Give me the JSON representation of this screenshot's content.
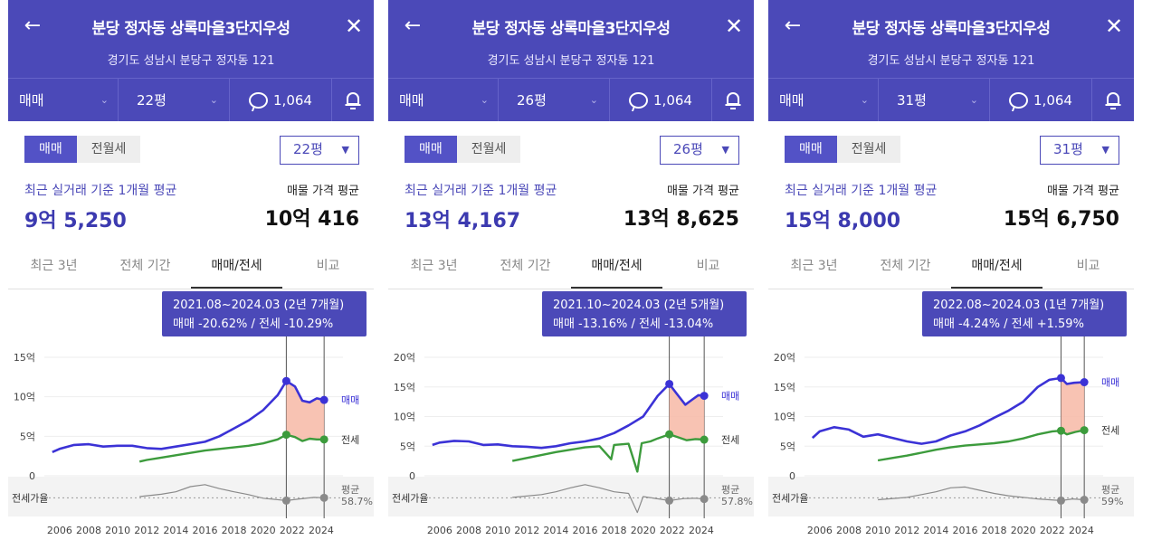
{
  "colors": {
    "header": "#4b49b8",
    "trade_line": "#3b32d6",
    "jeonse_line": "#3c9b3c",
    "range_fill": "#f7b8a6",
    "ratio_line": "#8a8a8a"
  },
  "panels": [
    {
      "header": {
        "title": "분당 정자동 상록마을3단지우성",
        "address": "경기도 성남시 분당구 정자동 121"
      },
      "toolbar": {
        "trade_type": "매매",
        "size": "22평",
        "comment_count": "1,064"
      },
      "segment": {
        "trade": "매매",
        "rent": "전월세"
      },
      "size_select": "22평",
      "avg_label": "최근 실거래 기준 1개월 평균",
      "avg_value": "9억 5,250",
      "ask_label": "매물 가격 평균",
      "ask_value": "10억 416",
      "tabs": [
        "최근 3년",
        "전체 기간",
        "매매/전세",
        "비교"
      ],
      "chart_data": {
        "type": "line",
        "tooltip": {
          "period": "2021.08~2024.03 (2년 7개월)",
          "change": "매매 -20.62%  /  전세 -10.29%"
        },
        "y_ticks": [
          "15억",
          "10억",
          "5억",
          "0"
        ],
        "ylim": [
          0,
          15
        ],
        "x_ticks": [
          "2006",
          "2008",
          "2010",
          "2012",
          "2014",
          "2016",
          "2018",
          "2020",
          "2022",
          "2024"
        ],
        "range": [
          2021.6,
          2024.2
        ],
        "ratio_label": "전세가율",
        "ratio_avg_label": "평균",
        "ratio_avg_value": "58.7%",
        "series": [
          {
            "name": "매매",
            "points": [
              [
                2005.5,
                3.0
              ],
              [
                2006,
                3.4
              ],
              [
                2007,
                3.9
              ],
              [
                2008,
                4.0
              ],
              [
                2009,
                3.7
              ],
              [
                2010,
                3.8
              ],
              [
                2011,
                3.8
              ],
              [
                2012,
                3.5
              ],
              [
                2013,
                3.4
              ],
              [
                2014,
                3.7
              ],
              [
                2015,
                4.0
              ],
              [
                2016,
                4.3
              ],
              [
                2017,
                5.0
              ],
              [
                2018,
                6.0
              ],
              [
                2019,
                7.0
              ],
              [
                2020,
                8.3
              ],
              [
                2021,
                10.2
              ],
              [
                2021.6,
                12.0
              ],
              [
                2022.2,
                11.3
              ],
              [
                2022.7,
                9.5
              ],
              [
                2023.2,
                9.3
              ],
              [
                2023.7,
                9.8
              ],
              [
                2024.2,
                9.6
              ]
            ]
          },
          {
            "name": "전세",
            "points": [
              [
                2011.5,
                1.8
              ],
              [
                2012,
                2.0
              ],
              [
                2013,
                2.3
              ],
              [
                2014,
                2.6
              ],
              [
                2015,
                2.9
              ],
              [
                2016,
                3.2
              ],
              [
                2017,
                3.4
              ],
              [
                2018,
                3.6
              ],
              [
                2019,
                3.8
              ],
              [
                2020,
                4.1
              ],
              [
                2021,
                4.6
              ],
              [
                2021.6,
                5.2
              ],
              [
                2022.2,
                4.9
              ],
              [
                2022.7,
                4.4
              ],
              [
                2023.2,
                4.7
              ],
              [
                2023.7,
                4.6
              ],
              [
                2024.2,
                4.6
              ]
            ]
          },
          {
            "name": "전세가율",
            "points": [
              [
                2011.5,
                0.5
              ],
              [
                2013,
                0.56
              ],
              [
                2014,
                0.62
              ],
              [
                2015,
                0.75
              ],
              [
                2016,
                0.8
              ],
              [
                2017,
                0.7
              ],
              [
                2018,
                0.62
              ],
              [
                2019,
                0.55
              ],
              [
                2020,
                0.46
              ],
              [
                2021.6,
                0.4
              ],
              [
                2022.5,
                0.44
              ],
              [
                2023.5,
                0.48
              ],
              [
                2024.2,
                0.47
              ]
            ]
          }
        ]
      }
    },
    {
      "header": {
        "title": "분당 정자동 상록마을3단지우성",
        "address": "경기도 성남시 분당구 정자동 121"
      },
      "toolbar": {
        "trade_type": "매매",
        "size": "26평",
        "comment_count": "1,064"
      },
      "segment": {
        "trade": "매매",
        "rent": "전월세"
      },
      "size_select": "26평",
      "avg_label": "최근 실거래 기준 1개월 평균",
      "avg_value": "13억 4,167",
      "ask_label": "매물 가격 평균",
      "ask_value": "13억 8,625",
      "tabs": [
        "최근 3년",
        "전체 기간",
        "매매/전세",
        "비교"
      ],
      "chart_data": {
        "type": "line",
        "tooltip": {
          "period": "2021.10~2024.03 (2년 5개월)",
          "change": "매매 -13.16%  /  전세 -13.04%"
        },
        "y_ticks": [
          "20억",
          "15억",
          "10억",
          "5억",
          "0"
        ],
        "ylim": [
          0,
          20
        ],
        "x_ticks": [
          "2006",
          "2008",
          "2010",
          "2012",
          "2014",
          "2016",
          "2018",
          "2020",
          "2022",
          "2024"
        ],
        "range": [
          2021.8,
          2024.2
        ],
        "ratio_label": "전세가율",
        "ratio_avg_label": "평균",
        "ratio_avg_value": "57.8%",
        "series": [
          {
            "name": "매매",
            "points": [
              [
                2005.5,
                5.2
              ],
              [
                2006,
                5.6
              ],
              [
                2007,
                5.9
              ],
              [
                2008,
                5.8
              ],
              [
                2009,
                5.2
              ],
              [
                2010,
                5.3
              ],
              [
                2011,
                5.0
              ],
              [
                2012,
                4.9
              ],
              [
                2013,
                4.7
              ],
              [
                2014,
                5.0
              ],
              [
                2015,
                5.5
              ],
              [
                2016,
                5.8
              ],
              [
                2017,
                6.3
              ],
              [
                2018,
                7.2
              ],
              [
                2019,
                8.5
              ],
              [
                2020,
                10.0
              ],
              [
                2021,
                13.5
              ],
              [
                2021.8,
                15.5
              ],
              [
                2022.3,
                13.9
              ],
              [
                2022.9,
                12.0
              ],
              [
                2023.4,
                12.9
              ],
              [
                2023.8,
                13.6
              ],
              [
                2024.2,
                13.5
              ]
            ]
          },
          {
            "name": "전세",
            "points": [
              [
                2011,
                2.5
              ],
              [
                2012,
                3.0
              ],
              [
                2013,
                3.5
              ],
              [
                2014,
                4.0
              ],
              [
                2015,
                4.4
              ],
              [
                2016,
                4.8
              ],
              [
                2017,
                5.0
              ],
              [
                2017.8,
                2.8
              ],
              [
                2018,
                5.2
              ],
              [
                2019,
                5.4
              ],
              [
                2019.6,
                0.7
              ],
              [
                2019.9,
                5.5
              ],
              [
                2020.5,
                5.8
              ],
              [
                2021,
                6.3
              ],
              [
                2021.8,
                7.0
              ],
              [
                2022.4,
                6.5
              ],
              [
                2023,
                6.0
              ],
              [
                2023.6,
                6.2
              ],
              [
                2024.2,
                6.1
              ]
            ]
          },
          {
            "name": "전세가율",
            "points": [
              [
                2011,
                0.48
              ],
              [
                2013,
                0.55
              ],
              [
                2014,
                0.62
              ],
              [
                2015,
                0.72
              ],
              [
                2016,
                0.8
              ],
              [
                2017,
                0.72
              ],
              [
                2018,
                0.62
              ],
              [
                2019,
                0.58
              ],
              [
                2019.6,
                0.1
              ],
              [
                2020,
                0.5
              ],
              [
                2021.8,
                0.4
              ],
              [
                2022.8,
                0.45
              ],
              [
                2023.6,
                0.46
              ],
              [
                2024.2,
                0.44
              ]
            ]
          }
        ]
      }
    },
    {
      "header": {
        "title": "분당 정자동 상록마을3단지우성",
        "address": "경기도 성남시 분당구 정자동 121"
      },
      "toolbar": {
        "trade_type": "매매",
        "size": "31평",
        "comment_count": "1,064"
      },
      "segment": {
        "trade": "매매",
        "rent": "전월세"
      },
      "size_select": "31평",
      "avg_label": "최근 실거래 기준 1개월 평균",
      "avg_value": "15억 8,000",
      "ask_label": "매물 가격 평균",
      "ask_value": "15억 6,750",
      "tabs": [
        "최근 3년",
        "전체 기간",
        "매매/전세",
        "비교"
      ],
      "chart_data": {
        "type": "line",
        "tooltip": {
          "period": "2022.08~2024.03 (1년 7개월)",
          "change": "매매 -4.24%  /  전세 +1.59%"
        },
        "y_ticks": [
          "20억",
          "15억",
          "10억",
          "5억",
          "0"
        ],
        "ylim": [
          0,
          20
        ],
        "x_ticks": [
          "2006",
          "2008",
          "2010",
          "2012",
          "2014",
          "2016",
          "2018",
          "2020",
          "2022",
          "2024"
        ],
        "range": [
          2022.6,
          2024.2
        ],
        "ratio_label": "전세가율",
        "ratio_avg_label": "평균",
        "ratio_avg_value": "59%",
        "series": [
          {
            "name": "매매",
            "points": [
              [
                2005.5,
                6.4
              ],
              [
                2006,
                7.5
              ],
              [
                2007,
                8.2
              ],
              [
                2008,
                7.8
              ],
              [
                2009,
                6.6
              ],
              [
                2010,
                7.0
              ],
              [
                2011,
                6.4
              ],
              [
                2012,
                5.8
              ],
              [
                2013,
                5.4
              ],
              [
                2014,
                5.8
              ],
              [
                2015,
                6.8
              ],
              [
                2016,
                7.5
              ],
              [
                2017,
                8.5
              ],
              [
                2018,
                9.8
              ],
              [
                2019,
                11.0
              ],
              [
                2020,
                12.5
              ],
              [
                2021,
                15.0
              ],
              [
                2021.8,
                16.2
              ],
              [
                2022.6,
                16.5
              ],
              [
                2023,
                15.5
              ],
              [
                2023.5,
                15.7
              ],
              [
                2024.2,
                15.8
              ]
            ]
          },
          {
            "name": "전세",
            "points": [
              [
                2010,
                2.6
              ],
              [
                2011,
                3.0
              ],
              [
                2012,
                3.4
              ],
              [
                2013,
                3.9
              ],
              [
                2014,
                4.4
              ],
              [
                2015,
                4.8
              ],
              [
                2016,
                5.1
              ],
              [
                2017,
                5.3
              ],
              [
                2018,
                5.5
              ],
              [
                2019,
                5.8
              ],
              [
                2020,
                6.3
              ],
              [
                2021,
                7.0
              ],
              [
                2022,
                7.5
              ],
              [
                2022.6,
                7.6
              ],
              [
                2023,
                7.0
              ],
              [
                2023.6,
                7.4
              ],
              [
                2024.2,
                7.7
              ]
            ]
          },
          {
            "name": "전세가율",
            "points": [
              [
                2010,
                0.42
              ],
              [
                2012,
                0.48
              ],
              [
                2013,
                0.55
              ],
              [
                2014,
                0.62
              ],
              [
                2015,
                0.72
              ],
              [
                2016,
                0.74
              ],
              [
                2017,
                0.66
              ],
              [
                2018,
                0.58
              ],
              [
                2019,
                0.52
              ],
              [
                2020,
                0.48
              ],
              [
                2021,
                0.44
              ],
              [
                2022.6,
                0.4
              ],
              [
                2023.4,
                0.44
              ],
              [
                2024.2,
                0.42
              ]
            ]
          }
        ]
      }
    }
  ]
}
